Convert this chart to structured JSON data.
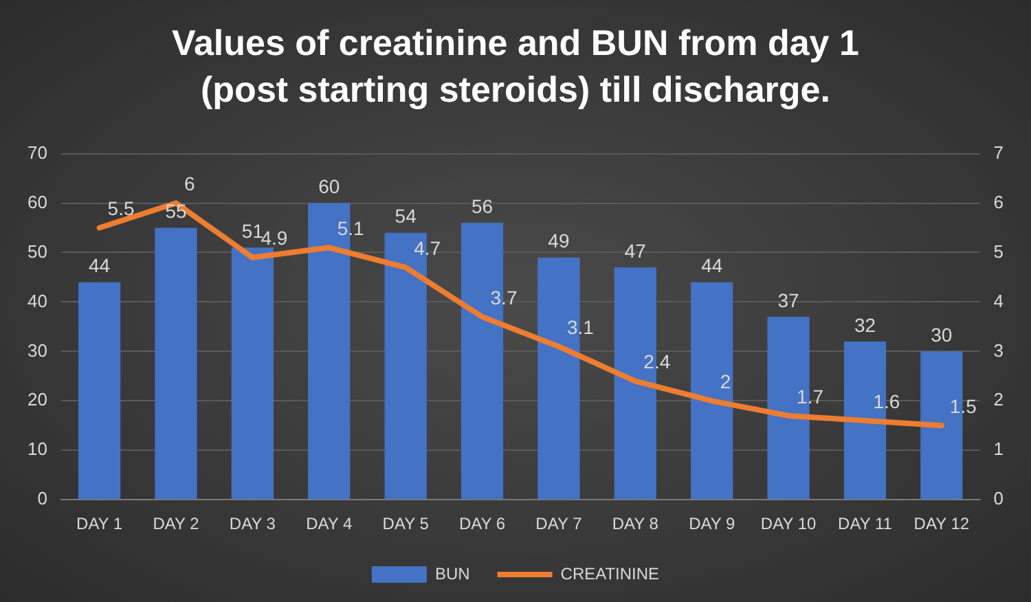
{
  "chart_data": {
    "type": "bar",
    "title": "Values of creatinine and BUN from day 1 (post starting steroids) till discharge.",
    "categories": [
      "DAY 1",
      "DAY 2",
      "DAY 3",
      "DAY 4",
      "DAY 5",
      "DAY 6",
      "DAY 7",
      "DAY 8",
      "DAY 9",
      "DAY 10",
      "DAY 11",
      "DAY 12"
    ],
    "series": [
      {
        "name": "BUN",
        "color": "#4472c4",
        "values": [
          44,
          55,
          51,
          60,
          54,
          56,
          49,
          47,
          44,
          37,
          32,
          30
        ]
      },
      {
        "name": "CREATININE",
        "type": "line",
        "axis": "y2",
        "color": "#ed7d31",
        "values": [
          5.5,
          6,
          4.9,
          5.1,
          4.7,
          3.7,
          3.1,
          2.4,
          2,
          1.7,
          1.6,
          1.5
        ]
      }
    ],
    "ylim": [
      0,
      70
    ],
    "yticks": [
      0,
      10,
      20,
      30,
      40,
      50,
      60,
      70
    ],
    "y2lim": [
      0,
      7
    ],
    "y2ticks": [
      0,
      1,
      2,
      3,
      4,
      5,
      6,
      7
    ],
    "grid": "y",
    "legend": "bottom",
    "data_labels": true,
    "marker": "none"
  }
}
